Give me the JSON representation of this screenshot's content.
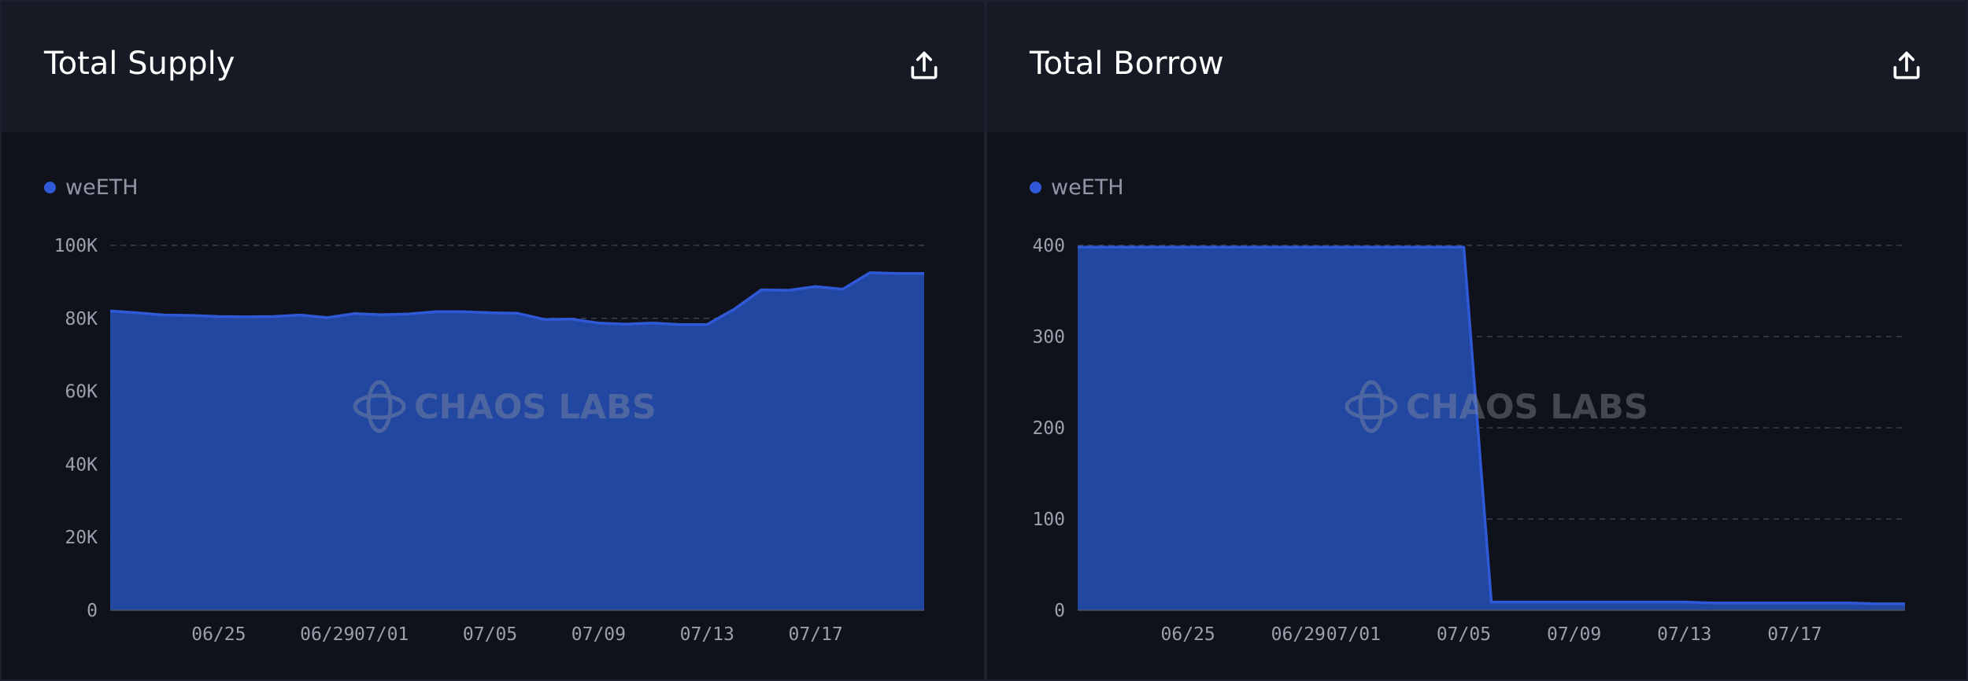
{
  "colors": {
    "series": "#2f59d6",
    "area": "#2349a5",
    "grid": "#3a4050",
    "tick_text": "#9aa0ad",
    "watermark": "#8a90a0"
  },
  "icons": {
    "export": "upload-share-icon",
    "watermark_logo": "chaos-labs-logo-icon"
  },
  "watermark": "CHAOS LABS",
  "panels": [
    {
      "title": "Total Supply",
      "legend": "weETH",
      "chart_data": {
        "type": "area",
        "title": "Total Supply",
        "legend_position": "top-left",
        "grid": true,
        "series": [
          {
            "name": "weETH",
            "x": [
              "2024-06-21",
              "2024-06-22",
              "2024-06-23",
              "2024-06-24",
              "2024-06-25",
              "2024-06-26",
              "2024-06-27",
              "2024-06-28",
              "2024-06-29",
              "2024-06-30",
              "2024-07-01",
              "2024-07-02",
              "2024-07-03",
              "2024-07-04",
              "2024-07-05",
              "2024-07-06",
              "2024-07-07",
              "2024-07-08",
              "2024-07-09",
              "2024-07-10",
              "2024-07-11",
              "2024-07-12",
              "2024-07-13",
              "2024-07-14",
              "2024-07-15",
              "2024-07-16",
              "2024-07-17",
              "2024-07-18",
              "2024-07-19",
              "2024-07-20",
              "2024-07-21"
            ],
            "values": [
              82000,
              81500,
              80900,
              80800,
              80500,
              80400,
              80500,
              80900,
              80200,
              81300,
              81000,
              81200,
              81800,
              81800,
              81500,
              81400,
              79700,
              79800,
              78700,
              78400,
              78700,
              78300,
              78300,
              82500,
              87800,
              87700,
              88700,
              88000,
              92500,
              92300,
              92300
            ]
          }
        ],
        "x_ticks": [
          "06/25",
          "06/29",
          "07/01",
          "07/05",
          "07/09",
          "07/13",
          "07/17"
        ],
        "x_tick_dates": [
          "2024-06-25",
          "2024-06-29",
          "2024-07-01",
          "2024-07-05",
          "2024-07-09",
          "2024-07-13",
          "2024-07-17"
        ],
        "y_ticks": [
          "0",
          "20K",
          "40K",
          "60K",
          "80K",
          "100K"
        ],
        "y_tick_values": [
          0,
          20000,
          40000,
          60000,
          80000,
          100000
        ],
        "ylim": [
          0,
          100000
        ]
      }
    },
    {
      "title": "Total Borrow",
      "legend": "weETH",
      "chart_data": {
        "type": "area",
        "title": "Total Borrow",
        "legend_position": "top-left",
        "grid": true,
        "series": [
          {
            "name": "weETH",
            "x": [
              "2024-06-21",
              "2024-06-22",
              "2024-06-23",
              "2024-06-24",
              "2024-06-25",
              "2024-06-26",
              "2024-06-27",
              "2024-06-28",
              "2024-06-29",
              "2024-06-30",
              "2024-07-01",
              "2024-07-02",
              "2024-07-03",
              "2024-07-04",
              "2024-07-05",
              "2024-07-06",
              "2024-07-07",
              "2024-07-08",
              "2024-07-09",
              "2024-07-10",
              "2024-07-11",
              "2024-07-12",
              "2024-07-13",
              "2024-07-14",
              "2024-07-15",
              "2024-07-16",
              "2024-07-17",
              "2024-07-18",
              "2024-07-19",
              "2024-07-20",
              "2024-07-21"
            ],
            "values": [
              398,
              398,
              398,
              398,
              398,
              398,
              398,
              398,
              398,
              398,
              398,
              398,
              398,
              398,
              398,
              9,
              9,
              9,
              9,
              9,
              9,
              9,
              9,
              8,
              8,
              8,
              8,
              8,
              8,
              7,
              7
            ]
          }
        ],
        "x_ticks": [
          "06/25",
          "06/29",
          "07/01",
          "07/05",
          "07/09",
          "07/13",
          "07/17"
        ],
        "x_tick_dates": [
          "2024-06-25",
          "2024-06-29",
          "2024-07-01",
          "2024-07-05",
          "2024-07-09",
          "2024-07-13",
          "2024-07-17"
        ],
        "y_ticks": [
          "0",
          "100",
          "200",
          "300",
          "400"
        ],
        "y_tick_values": [
          0,
          100,
          200,
          300,
          400
        ],
        "ylim": [
          0,
          400
        ]
      }
    }
  ]
}
